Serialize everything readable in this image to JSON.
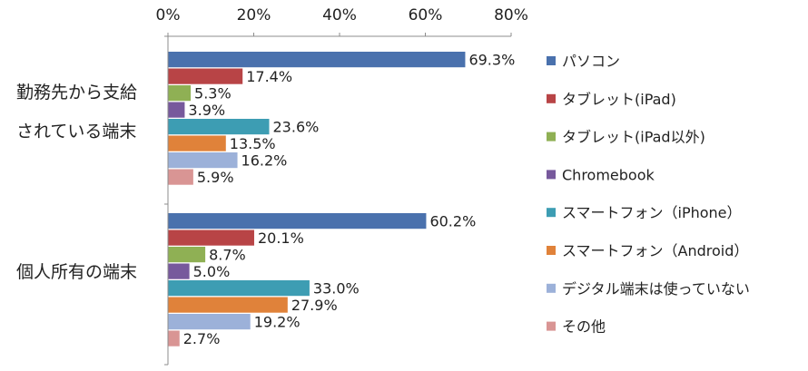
{
  "chart_data": {
    "type": "bar",
    "orientation": "horizontal",
    "title": "",
    "xlabel": "",
    "ylabel": "",
    "xlim": [
      0,
      80
    ],
    "ticks": [
      0,
      20,
      40,
      60,
      80
    ],
    "tick_labels": [
      "0%",
      "20%",
      "40%",
      "60%",
      "80%"
    ],
    "axis_position": "top",
    "grid": false,
    "legend_position": "right",
    "groups": [
      {
        "label_lines": [
          "勤務先から支給",
          "されている端末"
        ],
        "values": [
          69.3,
          17.4,
          5.3,
          3.9,
          23.6,
          13.5,
          16.2,
          5.9
        ],
        "value_labels": [
          "69.3%",
          "17.4%",
          "5.3%",
          "3.9%",
          "23.6%",
          "13.5%",
          "16.2%",
          "5.9%"
        ]
      },
      {
        "label_lines": [
          "個人所有の端末"
        ],
        "values": [
          60.2,
          20.1,
          8.7,
          5.0,
          33.0,
          27.9,
          19.2,
          2.7
        ],
        "value_labels": [
          "60.2%",
          "20.1%",
          "8.7%",
          "5.0%",
          "33.0%",
          "27.9%",
          "19.2%",
          "2.7%"
        ]
      }
    ],
    "series": [
      {
        "name": "パソコン",
        "color": "#4a71ad"
      },
      {
        "name": "タブレット(iPad)",
        "color": "#b84446"
      },
      {
        "name": "タブレット(iPad以外)",
        "color": "#8fb054"
      },
      {
        "name": "Chromebook",
        "color": "#77599c"
      },
      {
        "name": "スマートフォン（iPhone）",
        "color": "#3d9db3"
      },
      {
        "name": "スマートフォン（Android）",
        "color": "#e0823a"
      },
      {
        "name": "デジタル端末は使っていない",
        "color": "#9cb1d9"
      },
      {
        "name": "その他",
        "color": "#d99594"
      }
    ]
  }
}
